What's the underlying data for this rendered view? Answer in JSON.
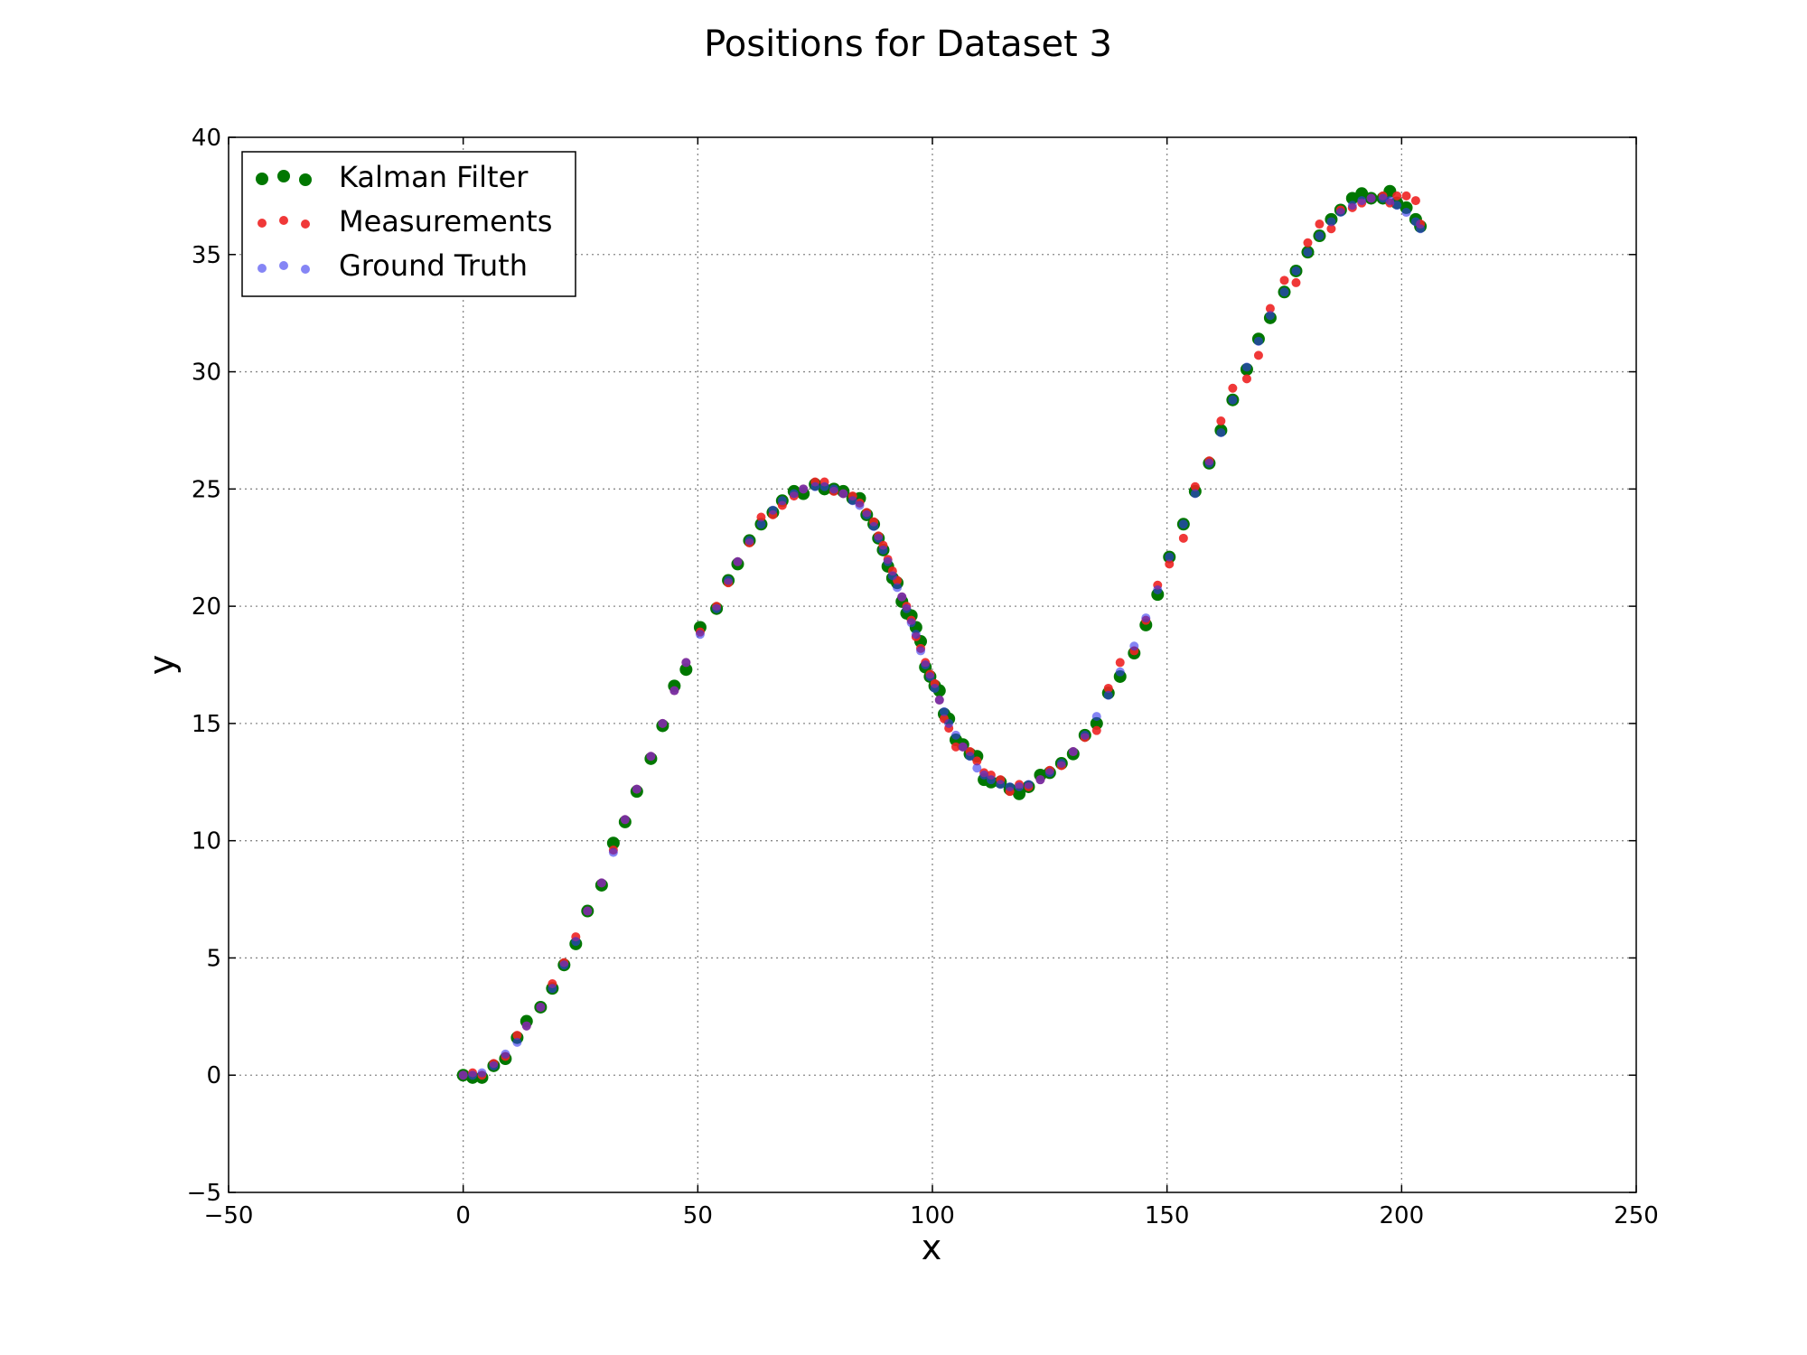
{
  "chart_data": {
    "type": "scatter",
    "title": "Positions for Dataset 3",
    "xlabel": "x",
    "ylabel": "y",
    "xlim": [
      -50,
      250
    ],
    "ylim": [
      -5,
      40
    ],
    "xticks": [
      -50,
      0,
      50,
      100,
      150,
      200,
      250
    ],
    "yticks": [
      -5,
      0,
      5,
      10,
      15,
      20,
      25,
      30,
      35,
      40
    ],
    "xtick_labels": [
      "−50",
      "0",
      "50",
      "100",
      "150",
      "200",
      "250"
    ],
    "ytick_labels": [
      "−5",
      "0",
      "5",
      "10",
      "15",
      "20",
      "25",
      "30",
      "35",
      "40"
    ],
    "grid": true,
    "legend_position": "top-left",
    "series": [
      {
        "name": "Kalman Filter",
        "color": "#007700",
        "marker": "large-dot",
        "points": [
          [
            0,
            0
          ],
          [
            2,
            -0.1
          ],
          [
            4,
            -0.1
          ],
          [
            6.5,
            0.4
          ],
          [
            9,
            0.7
          ],
          [
            11.5,
            1.6
          ],
          [
            13.5,
            2.3
          ],
          [
            16.5,
            2.9
          ],
          [
            19,
            3.7
          ],
          [
            21.5,
            4.7
          ],
          [
            24,
            5.6
          ],
          [
            26.5,
            7
          ],
          [
            29.5,
            8.1
          ],
          [
            32,
            9.9
          ],
          [
            34.5,
            10.8
          ],
          [
            37,
            12.1
          ],
          [
            40,
            13.5
          ],
          [
            42.5,
            14.9
          ],
          [
            45,
            16.6
          ],
          [
            47.5,
            17.3
          ],
          [
            50.5,
            19.1
          ],
          [
            54,
            19.9
          ],
          [
            56.5,
            21.1
          ],
          [
            58.5,
            21.8
          ],
          [
            61,
            22.8
          ],
          [
            63.5,
            23.5
          ],
          [
            66,
            24
          ],
          [
            68,
            24.5
          ],
          [
            70.5,
            24.9
          ],
          [
            72.5,
            24.8
          ],
          [
            75,
            25.2
          ],
          [
            77,
            25
          ],
          [
            79,
            25
          ],
          [
            81,
            24.9
          ],
          [
            83,
            24.6
          ],
          [
            84.5,
            24.6
          ],
          [
            86,
            23.9
          ],
          [
            87.5,
            23.5
          ],
          [
            88.5,
            22.9
          ],
          [
            89.5,
            22.4
          ],
          [
            90.5,
            21.7
          ],
          [
            91.5,
            21.2
          ],
          [
            92.5,
            21
          ],
          [
            93.5,
            20.2
          ],
          [
            94.5,
            19.7
          ],
          [
            95.5,
            19.6
          ],
          [
            96.5,
            19.1
          ],
          [
            97.5,
            18.5
          ],
          [
            98.5,
            17.4
          ],
          [
            99.5,
            17
          ],
          [
            100.5,
            16.6
          ],
          [
            101.5,
            16.4
          ],
          [
            102.5,
            15.4
          ],
          [
            103.5,
            15.2
          ],
          [
            105,
            14.3
          ],
          [
            106.5,
            14.1
          ],
          [
            108,
            13.7
          ],
          [
            109.5,
            13.6
          ],
          [
            111,
            12.6
          ],
          [
            112.5,
            12.5
          ],
          [
            114.5,
            12.5
          ],
          [
            116.5,
            12.2
          ],
          [
            118.5,
            12
          ],
          [
            120.5,
            12.3
          ],
          [
            123,
            12.8
          ],
          [
            125,
            12.9
          ],
          [
            127.5,
            13.3
          ],
          [
            130,
            13.7
          ],
          [
            132.5,
            14.5
          ],
          [
            135,
            15
          ],
          [
            137.5,
            16.3
          ],
          [
            140,
            17
          ],
          [
            143,
            18
          ],
          [
            145.5,
            19.2
          ],
          [
            148,
            20.5
          ],
          [
            150.5,
            22.1
          ],
          [
            153.5,
            23.5
          ],
          [
            156,
            24.9
          ],
          [
            159,
            26.1
          ],
          [
            161.5,
            27.5
          ],
          [
            164,
            28.8
          ],
          [
            167,
            30.1
          ],
          [
            169.5,
            31.4
          ],
          [
            172,
            32.3
          ],
          [
            175,
            33.4
          ],
          [
            177.5,
            34.3
          ],
          [
            180,
            35.1
          ],
          [
            182.5,
            35.8
          ],
          [
            185,
            36.5
          ],
          [
            187,
            36.9
          ],
          [
            189.5,
            37.4
          ],
          [
            191.5,
            37.6
          ],
          [
            193.5,
            37.4
          ],
          [
            196,
            37.4
          ],
          [
            197.5,
            37.7
          ],
          [
            199,
            37.2
          ],
          [
            201,
            37
          ],
          [
            203,
            36.5
          ],
          [
            204,
            36.2
          ]
        ]
      },
      {
        "name": "Measurements",
        "color": "#ee2222",
        "marker": "small-dot",
        "points": [
          [
            0,
            0
          ],
          [
            2,
            0.1
          ],
          [
            4,
            0
          ],
          [
            6.5,
            0.5
          ],
          [
            9,
            0.8
          ],
          [
            11.5,
            1.7
          ],
          [
            13.5,
            2.1
          ],
          [
            16.5,
            2.9
          ],
          [
            19,
            3.9
          ],
          [
            21.5,
            4.8
          ],
          [
            24,
            5.9
          ],
          [
            26.5,
            7
          ],
          [
            29.5,
            8.2
          ],
          [
            32,
            9.6
          ],
          [
            34.5,
            10.9
          ],
          [
            37,
            12.2
          ],
          [
            40,
            13.6
          ],
          [
            42.5,
            15
          ],
          [
            45,
            16.4
          ],
          [
            47.5,
            17.6
          ],
          [
            50.5,
            18.9
          ],
          [
            54,
            20
          ],
          [
            56.5,
            21
          ],
          [
            58.5,
            21.9
          ],
          [
            61,
            22.7
          ],
          [
            63.5,
            23.8
          ],
          [
            66,
            23.9
          ],
          [
            68,
            24.3
          ],
          [
            70.5,
            24.7
          ],
          [
            72.5,
            25
          ],
          [
            75,
            25.3
          ],
          [
            77,
            25.3
          ],
          [
            79,
            24.9
          ],
          [
            81,
            24.8
          ],
          [
            83,
            24.7
          ],
          [
            84.5,
            24.4
          ],
          [
            86,
            24
          ],
          [
            87.5,
            23.6
          ],
          [
            88.5,
            23
          ],
          [
            89.5,
            22.6
          ],
          [
            90.5,
            22
          ],
          [
            91.5,
            21.5
          ],
          [
            92.5,
            21.1
          ],
          [
            93.5,
            20.4
          ],
          [
            94.5,
            20
          ],
          [
            95.5,
            19.4
          ],
          [
            96.5,
            18.7
          ],
          [
            97.5,
            18.2
          ],
          [
            98.5,
            17.6
          ],
          [
            99.5,
            17.1
          ],
          [
            100.5,
            16.7
          ],
          [
            101.5,
            16
          ],
          [
            102.5,
            15.2
          ],
          [
            103.5,
            14.8
          ],
          [
            105,
            14
          ],
          [
            106.5,
            14
          ],
          [
            108,
            13.8
          ],
          [
            109.5,
            13.4
          ],
          [
            111,
            12.9
          ],
          [
            112.5,
            12.8
          ],
          [
            114.5,
            12.6
          ],
          [
            116.5,
            12.1
          ],
          [
            118.5,
            12.4
          ],
          [
            120.5,
            12.3
          ],
          [
            123,
            12.6
          ],
          [
            125,
            13
          ],
          [
            127.5,
            13.2
          ],
          [
            130,
            13.8
          ],
          [
            132.5,
            14.4
          ],
          [
            135,
            14.7
          ],
          [
            137.5,
            16.5
          ],
          [
            140,
            17.6
          ],
          [
            143,
            18.1
          ],
          [
            145.5,
            19.4
          ],
          [
            148,
            20.9
          ],
          [
            150.5,
            21.8
          ],
          [
            153.5,
            22.9
          ],
          [
            156,
            25.1
          ],
          [
            159,
            26.2
          ],
          [
            161.5,
            27.9
          ],
          [
            164,
            29.3
          ],
          [
            167,
            29.7
          ],
          [
            169.5,
            30.7
          ],
          [
            172,
            32.7
          ],
          [
            175,
            33.9
          ],
          [
            177.5,
            33.8
          ],
          [
            180,
            35.5
          ],
          [
            182.5,
            36.3
          ],
          [
            185,
            36.1
          ],
          [
            187,
            36.9
          ],
          [
            189.5,
            37
          ],
          [
            191.5,
            37.2
          ],
          [
            193.5,
            37.4
          ],
          [
            196,
            37.5
          ],
          [
            197.5,
            37.2
          ],
          [
            199,
            37.5
          ],
          [
            201,
            37.5
          ],
          [
            203,
            37.3
          ],
          [
            204,
            36.3
          ]
        ]
      },
      {
        "name": "Ground Truth",
        "color": "#3333ee",
        "marker": "small-dot",
        "points": [
          [
            0,
            0
          ],
          [
            2,
            0
          ],
          [
            4,
            0.1
          ],
          [
            6.5,
            0.4
          ],
          [
            9,
            0.9
          ],
          [
            11.5,
            1.4
          ],
          [
            13.5,
            2.1
          ],
          [
            16.5,
            2.9
          ],
          [
            19,
            3.7
          ],
          [
            21.5,
            4.7
          ],
          [
            24,
            5.7
          ],
          [
            26.5,
            7
          ],
          [
            29.5,
            8.2
          ],
          [
            32,
            9.5
          ],
          [
            34.5,
            10.9
          ],
          [
            37,
            12.2
          ],
          [
            40,
            13.6
          ],
          [
            42.5,
            15
          ],
          [
            45,
            16.4
          ],
          [
            47.5,
            17.6
          ],
          [
            50.5,
            18.8
          ],
          [
            54,
            19.9
          ],
          [
            56.5,
            21.1
          ],
          [
            58.5,
            21.9
          ],
          [
            61,
            22.8
          ],
          [
            63.5,
            23.5
          ],
          [
            66,
            24.1
          ],
          [
            68,
            24.5
          ],
          [
            70.5,
            24.8
          ],
          [
            72.5,
            25
          ],
          [
            75,
            25.1
          ],
          [
            77,
            25.1
          ],
          [
            79,
            25
          ],
          [
            81,
            24.8
          ],
          [
            83,
            24.5
          ],
          [
            84.5,
            24.3
          ],
          [
            86,
            23.9
          ],
          [
            87.5,
            23.4
          ],
          [
            88.5,
            22.9
          ],
          [
            89.5,
            22.4
          ],
          [
            90.5,
            21.9
          ],
          [
            91.5,
            21.3
          ],
          [
            92.5,
            20.8
          ],
          [
            93.5,
            20.4
          ],
          [
            94.5,
            19.9
          ],
          [
            95.5,
            19.3
          ],
          [
            96.5,
            18.8
          ],
          [
            97.5,
            18.1
          ],
          [
            98.5,
            17.5
          ],
          [
            99.5,
            17
          ],
          [
            100.5,
            16.5
          ],
          [
            101.5,
            16
          ],
          [
            102.5,
            15.5
          ],
          [
            103.5,
            15
          ],
          [
            105,
            14.5
          ],
          [
            106.5,
            14
          ],
          [
            108,
            13.6
          ],
          [
            109.5,
            13.1
          ],
          [
            111,
            12.8
          ],
          [
            112.5,
            12.6
          ],
          [
            114.5,
            12.4
          ],
          [
            116.5,
            12.3
          ],
          [
            118.5,
            12.3
          ],
          [
            120.5,
            12.4
          ],
          [
            123,
            12.6
          ],
          [
            125,
            12.9
          ],
          [
            127.5,
            13.3
          ],
          [
            130,
            13.8
          ],
          [
            132.5,
            14.5
          ],
          [
            135,
            15.3
          ],
          [
            137.5,
            16.2
          ],
          [
            140,
            17.2
          ],
          [
            143,
            18.3
          ],
          [
            145.5,
            19.5
          ],
          [
            148,
            20.7
          ],
          [
            150.5,
            22.1
          ],
          [
            153.5,
            23.5
          ],
          [
            156,
            24.8
          ],
          [
            159,
            26.1
          ],
          [
            161.5,
            27.4
          ],
          [
            164,
            28.8
          ],
          [
            167,
            30.2
          ],
          [
            169.5,
            31.3
          ],
          [
            172,
            32.4
          ],
          [
            175,
            33.4
          ],
          [
            177.5,
            34.3
          ],
          [
            180,
            35.1
          ],
          [
            182.5,
            35.8
          ],
          [
            185,
            36.4
          ],
          [
            187,
            36.8
          ],
          [
            189.5,
            37.1
          ],
          [
            191.5,
            37.3
          ],
          [
            193.5,
            37.4
          ],
          [
            196,
            37.4
          ],
          [
            197.5,
            37.3
          ],
          [
            199,
            37.1
          ],
          [
            201,
            36.8
          ],
          [
            203,
            36.4
          ],
          [
            204,
            36.1
          ]
        ]
      }
    ]
  }
}
